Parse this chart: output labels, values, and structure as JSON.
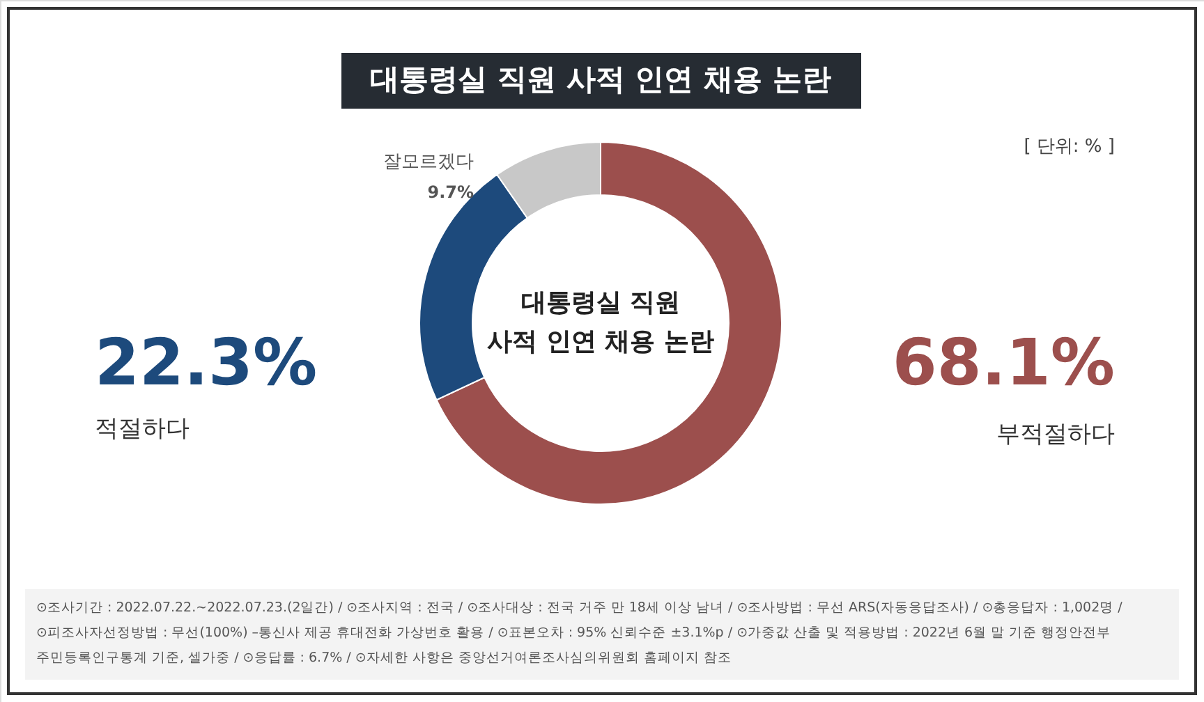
{
  "chart_data": {
    "type": "donut",
    "title": "대통령실 직원 사적 인연 채용 논란",
    "subtitle": "대통령실 직원\n사적 인연 채용 논란",
    "categories": [
      "부적절하다",
      "적절하다",
      "잘모르겠다"
    ],
    "values": [
      68.1,
      22.3,
      9.7
    ],
    "colors": [
      "#9c4f4d",
      "#1d4a7c",
      "#c8c8c8"
    ],
    "value_labels": [
      "68.1%",
      "22.3%",
      "9.7%"
    ],
    "annotations": [
      "[ 단위: % ]",
      "⊙조사기간 : 2022.07.22.~2022.07.23.(2일간) / ⊙조사지역 : 전국 / ⊙조사대상 : 전국 거주 만 18세 이상 남녀 / ⊙조사방법 : 무선 ARS(자동응답조사) / ⊙총응답자 : 1,002명 /",
      "⊙피조사자선정방법 : 무선(100%) –통신사 제공 휴대전화 가상번호 활용 / ⊙표본오차 : 95% 신뢰수준 ±3.1%p / ⊙가중값 산출 및 적용방법 : 2022년 6월 말 기준 행정안전부",
      "주민등록인구통계 기준, 셀가중 / ⊙응답률 : 6.7% / ⊙자세한 사항은 중앙선거여론조사심의위원회 홈페이지 참조"
    ]
  }
}
